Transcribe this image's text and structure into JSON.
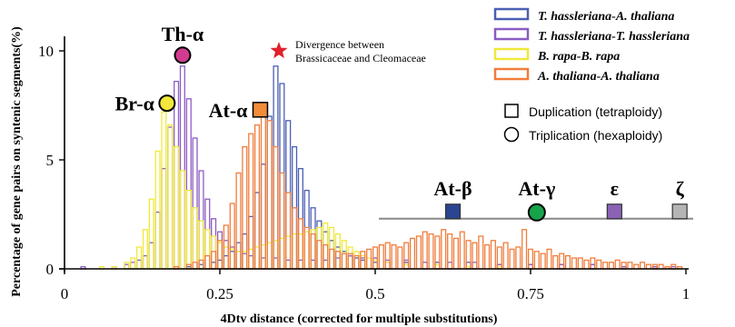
{
  "chart_data": {
    "type": "bar",
    "xlabel": "4Dtv distance (corrected for multiple substitutions)",
    "ylabel": "Percentage of gene pairs on syntenic segments(%)",
    "xlim": [
      0,
      1
    ],
    "ylim": [
      0,
      10.5
    ],
    "x_ticks": [
      "0",
      "0.25",
      "0.5",
      "0.75",
      "1"
    ],
    "x_tick_values": [
      0,
      0.25,
      0.5,
      0.75,
      1
    ],
    "y_ticks": [
      "0",
      "5",
      "10"
    ],
    "y_tick_values": [
      0,
      5,
      10
    ],
    "bin_width": 0.01,
    "series": [
      {
        "name": "T. hassleriana-A. thaliana",
        "color": "#4a5fb4",
        "points": [
          [
            0.2,
            0.1
          ],
          [
            0.22,
            0.2
          ],
          [
            0.24,
            0.3
          ],
          [
            0.25,
            0.4
          ],
          [
            0.26,
            0.6
          ],
          [
            0.27,
            0.8
          ],
          [
            0.28,
            1.2
          ],
          [
            0.29,
            1.6
          ],
          [
            0.3,
            2.4
          ],
          [
            0.31,
            3.5
          ],
          [
            0.32,
            4.8
          ],
          [
            0.33,
            7.0
          ],
          [
            0.34,
            9.3
          ],
          [
            0.35,
            8.5
          ],
          [
            0.36,
            6.8
          ],
          [
            0.37,
            5.6
          ],
          [
            0.38,
            4.6
          ],
          [
            0.39,
            3.6
          ],
          [
            0.4,
            2.8
          ],
          [
            0.41,
            2.2
          ],
          [
            0.42,
            1.7
          ],
          [
            0.43,
            1.3
          ],
          [
            0.44,
            1.0
          ],
          [
            0.45,
            0.8
          ],
          [
            0.46,
            0.6
          ],
          [
            0.47,
            0.5
          ],
          [
            0.48,
            0.4
          ],
          [
            0.5,
            0.3
          ],
          [
            0.52,
            0.3
          ],
          [
            0.55,
            0.3
          ],
          [
            0.6,
            0.3
          ],
          [
            0.65,
            0.3
          ],
          [
            0.7,
            0.2
          ],
          [
            0.75,
            0.2
          ],
          [
            0.8,
            0.2
          ],
          [
            0.85,
            0.2
          ],
          [
            0.9,
            0.1
          ],
          [
            0.95,
            0.1
          ]
        ]
      },
      {
        "name": "T. hassleriana-T. hassleriana",
        "color": "#8c5cc4",
        "points": [
          [
            0.03,
            0.1
          ],
          [
            0.08,
            0.1
          ],
          [
            0.1,
            0.2
          ],
          [
            0.11,
            0.3
          ],
          [
            0.12,
            0.4
          ],
          [
            0.13,
            0.6
          ],
          [
            0.14,
            1.2
          ],
          [
            0.15,
            2.6
          ],
          [
            0.16,
            4.6
          ],
          [
            0.17,
            6.5
          ],
          [
            0.18,
            8.6
          ],
          [
            0.19,
            9.3
          ],
          [
            0.2,
            7.8
          ],
          [
            0.21,
            6.0
          ],
          [
            0.22,
            4.5
          ],
          [
            0.23,
            3.2
          ],
          [
            0.24,
            2.3
          ],
          [
            0.25,
            1.7
          ],
          [
            0.26,
            1.3
          ],
          [
            0.27,
            1.0
          ],
          [
            0.28,
            0.8
          ],
          [
            0.29,
            0.7
          ],
          [
            0.3,
            0.6
          ],
          [
            0.32,
            0.5
          ],
          [
            0.34,
            0.5
          ],
          [
            0.36,
            0.4
          ],
          [
            0.38,
            0.4
          ],
          [
            0.4,
            0.4
          ],
          [
            0.42,
            0.4
          ],
          [
            0.44,
            0.5
          ],
          [
            0.46,
            0.6
          ],
          [
            0.48,
            0.5
          ],
          [
            0.5,
            0.5
          ],
          [
            0.52,
            0.4
          ],
          [
            0.55,
            0.4
          ],
          [
            0.58,
            0.3
          ],
          [
            0.62,
            0.3
          ],
          [
            0.66,
            0.3
          ],
          [
            0.7,
            0.2
          ],
          [
            0.75,
            0.2
          ],
          [
            0.8,
            0.2
          ],
          [
            0.85,
            0.2
          ],
          [
            0.9,
            0.1
          ],
          [
            0.95,
            0.1
          ],
          [
            0.98,
            0.1
          ]
        ]
      },
      {
        "name": "B. rapa-B. rapa",
        "color": "#f0e83a",
        "points": [
          [
            0.06,
            0.1
          ],
          [
            0.08,
            0.1
          ],
          [
            0.1,
            0.3
          ],
          [
            0.11,
            0.5
          ],
          [
            0.12,
            1.0
          ],
          [
            0.13,
            1.8
          ],
          [
            0.14,
            3.2
          ],
          [
            0.15,
            5.4
          ],
          [
            0.16,
            7.2
          ],
          [
            0.17,
            6.6
          ],
          [
            0.18,
            5.6
          ],
          [
            0.19,
            4.5
          ],
          [
            0.2,
            3.6
          ],
          [
            0.21,
            2.8
          ],
          [
            0.22,
            2.2
          ],
          [
            0.23,
            1.8
          ],
          [
            0.24,
            1.5
          ],
          [
            0.25,
            1.2
          ],
          [
            0.26,
            1.0
          ],
          [
            0.27,
            0.9
          ],
          [
            0.28,
            0.8
          ],
          [
            0.29,
            0.8
          ],
          [
            0.3,
            0.9
          ],
          [
            0.31,
            1.0
          ],
          [
            0.32,
            1.1
          ],
          [
            0.33,
            1.2
          ],
          [
            0.34,
            1.3
          ],
          [
            0.35,
            1.4
          ],
          [
            0.36,
            1.5
          ],
          [
            0.37,
            1.6
          ],
          [
            0.38,
            1.6
          ],
          [
            0.39,
            1.7
          ],
          [
            0.4,
            1.8
          ],
          [
            0.41,
            1.9
          ],
          [
            0.42,
            2.1
          ],
          [
            0.43,
            1.9
          ],
          [
            0.44,
            1.6
          ],
          [
            0.45,
            1.3
          ],
          [
            0.46,
            1.0
          ],
          [
            0.47,
            0.8
          ],
          [
            0.48,
            0.6
          ],
          [
            0.49,
            0.5
          ],
          [
            0.5,
            0.4
          ],
          [
            0.52,
            0.3
          ],
          [
            0.55,
            0.2
          ],
          [
            0.6,
            0.2
          ],
          [
            0.65,
            0.1
          ],
          [
            0.7,
            0.1
          ]
        ]
      },
      {
        "name": "A. thaliana-A. thaliana",
        "color": "#f07d3c",
        "points": [
          [
            0.18,
            0.1
          ],
          [
            0.2,
            0.2
          ],
          [
            0.21,
            0.3
          ],
          [
            0.22,
            0.4
          ],
          [
            0.23,
            0.6
          ],
          [
            0.24,
            0.8
          ],
          [
            0.25,
            1.3
          ],
          [
            0.26,
            2.0
          ],
          [
            0.27,
            3.0
          ],
          [
            0.28,
            4.4
          ],
          [
            0.29,
            5.6
          ],
          [
            0.3,
            6.2
          ],
          [
            0.31,
            6.6
          ],
          [
            0.32,
            7.4
          ],
          [
            0.33,
            6.8
          ],
          [
            0.34,
            5.6
          ],
          [
            0.35,
            4.4
          ],
          [
            0.36,
            3.5
          ],
          [
            0.37,
            2.8
          ],
          [
            0.38,
            2.3
          ],
          [
            0.39,
            1.9
          ],
          [
            0.4,
            1.6
          ],
          [
            0.41,
            1.3
          ],
          [
            0.42,
            1.1
          ],
          [
            0.43,
            0.9
          ],
          [
            0.44,
            0.8
          ],
          [
            0.45,
            0.7
          ],
          [
            0.46,
            0.7
          ],
          [
            0.47,
            0.6
          ],
          [
            0.48,
            0.8
          ],
          [
            0.49,
            0.9
          ],
          [
            0.5,
            1.0
          ],
          [
            0.51,
            1.1
          ],
          [
            0.52,
            1.2
          ],
          [
            0.53,
            1.1
          ],
          [
            0.54,
            1.0
          ],
          [
            0.55,
            1.2
          ],
          [
            0.56,
            1.4
          ],
          [
            0.57,
            1.5
          ],
          [
            0.58,
            1.7
          ],
          [
            0.59,
            1.6
          ],
          [
            0.6,
            1.5
          ],
          [
            0.61,
            1.8
          ],
          [
            0.62,
            1.6
          ],
          [
            0.63,
            1.4
          ],
          [
            0.64,
            1.7
          ],
          [
            0.65,
            1.3
          ],
          [
            0.66,
            1.2
          ],
          [
            0.67,
            1.5
          ],
          [
            0.68,
            1.1
          ],
          [
            0.69,
            1.3
          ],
          [
            0.7,
            1.0
          ],
          [
            0.71,
            1.2
          ],
          [
            0.72,
            0.9
          ],
          [
            0.73,
            1.0
          ],
          [
            0.74,
            1.8
          ],
          [
            0.75,
            0.9
          ],
          [
            0.76,
            0.8
          ],
          [
            0.77,
            0.7
          ],
          [
            0.78,
            0.9
          ],
          [
            0.79,
            0.6
          ],
          [
            0.8,
            0.7
          ],
          [
            0.81,
            0.6
          ],
          [
            0.82,
            0.5
          ],
          [
            0.83,
            0.5
          ],
          [
            0.84,
            0.4
          ],
          [
            0.85,
            0.5
          ],
          [
            0.86,
            0.4
          ],
          [
            0.87,
            0.3
          ],
          [
            0.88,
            0.3
          ],
          [
            0.89,
            0.4
          ],
          [
            0.9,
            0.3
          ],
          [
            0.91,
            0.3
          ],
          [
            0.92,
            0.2
          ],
          [
            0.93,
            0.3
          ],
          [
            0.94,
            0.2
          ],
          [
            0.95,
            0.2
          ],
          [
            0.96,
            0.2
          ],
          [
            0.97,
            0.1
          ],
          [
            0.98,
            0.2
          ],
          [
            0.99,
            0.1
          ]
        ]
      }
    ],
    "legend": {
      "placement": "top-right",
      "entries": [
        {
          "label": "T. hassleriana-A. thaliana",
          "color": "#4a5fb4"
        },
        {
          "label": "T. hassleriana-T. hassleriana",
          "color": "#8c5cc4"
        },
        {
          "label": "B. rapa-B. rapa",
          "color": "#f0e83a"
        },
        {
          "label": "A. thaliana-A. thaliana",
          "color": "#f07d3c"
        }
      ],
      "symbols": [
        {
          "label": "Duplication (tetraploidy)",
          "shape": "square"
        },
        {
          "label": "Triplication (hexaploidy)",
          "shape": "circle"
        }
      ]
    },
    "annotations": {
      "peaks": [
        {
          "label": "Br-α",
          "x": 0.165,
          "y": 7.6,
          "shape": "circle",
          "color": "#f2e73a"
        },
        {
          "label": "Th-α",
          "x": 0.19,
          "y": 9.8,
          "shape": "circle",
          "color": "#d13c8f"
        },
        {
          "label": "At-α",
          "x": 0.315,
          "y": 7.3,
          "shape": "square",
          "color": "#f08c3a"
        }
      ],
      "divergence": {
        "label_line1": "Divergence between",
        "label_line2": "Brassicaceae and Cleomaceae",
        "x": 0.345,
        "y": 10.0,
        "color": "#e0202a"
      },
      "ancient_events_line_y": 2.3,
      "ancient_events_line_x": [
        0.5,
        1.0
      ],
      "ancient": [
        {
          "label": "At-β",
          "x": 0.625,
          "shape": "square",
          "color": "#2b4591"
        },
        {
          "label": "At-γ",
          "x": 0.76,
          "shape": "circle",
          "color": "#17a34a"
        },
        {
          "label": "ε",
          "x": 0.885,
          "shape": "square",
          "color": "#8a62b6"
        },
        {
          "label": "ζ",
          "x": 0.99,
          "shape": "square",
          "color": "#b5b5b5"
        }
      ]
    }
  }
}
